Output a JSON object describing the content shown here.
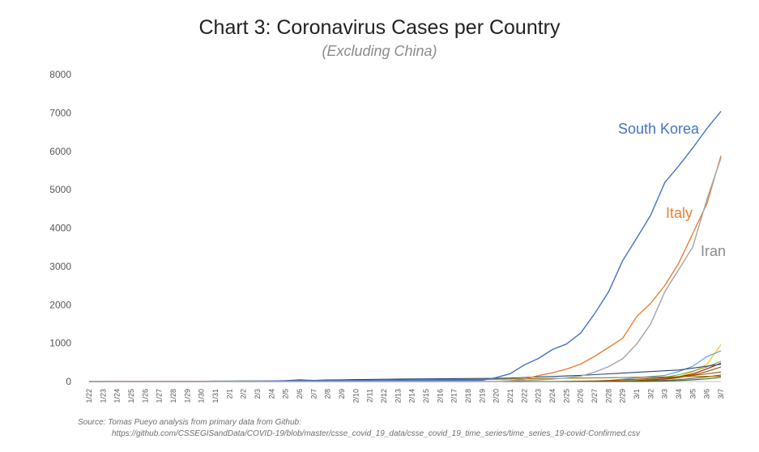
{
  "chart_data": {
    "type": "line",
    "title": "Chart 3: Coronavirus Cases per Country",
    "subtitle": "(Excluding China)",
    "ylim": [
      0,
      8000
    ],
    "yticks": [
      0,
      1000,
      2000,
      3000,
      4000,
      5000,
      6000,
      7000,
      8000
    ],
    "grid": false,
    "categories": [
      "1/22",
      "1/23",
      "1/24",
      "1/25",
      "1/26",
      "1/27",
      "1/28",
      "1/29",
      "1/30",
      "1/31",
      "2/1",
      "2/2",
      "2/3",
      "2/4",
      "2/5",
      "2/6",
      "2/7",
      "2/8",
      "2/9",
      "2/10",
      "2/11",
      "2/12",
      "2/13",
      "2/14",
      "2/15",
      "2/16",
      "2/17",
      "2/18",
      "2/19",
      "2/20",
      "2/21",
      "2/22",
      "2/23",
      "2/24",
      "2/25",
      "2/26",
      "2/27",
      "2/28",
      "2/29",
      "3/1",
      "3/2",
      "3/3",
      "3/4",
      "3/5",
      "3/6",
      "3/7"
    ],
    "series": [
      {
        "name": "South Korea",
        "color": "#4472c4",
        "values": [
          1,
          1,
          2,
          2,
          3,
          4,
          4,
          4,
          4,
          11,
          12,
          15,
          15,
          16,
          19,
          23,
          24,
          24,
          25,
          27,
          28,
          28,
          28,
          28,
          28,
          29,
          30,
          31,
          31,
          104,
          204,
          433,
          602,
          833,
          977,
          1261,
          1766,
          2337,
          3150,
          3736,
          4335,
          5186,
          5621,
          6088,
          6593,
          7041
        ]
      },
      {
        "name": "Italy",
        "color": "#ed7d31",
        "values": [
          0,
          0,
          0,
          0,
          0,
          0,
          0,
          0,
          0,
          2,
          2,
          2,
          2,
          2,
          2,
          2,
          3,
          3,
          3,
          3,
          3,
          3,
          3,
          3,
          3,
          3,
          3,
          3,
          3,
          3,
          20,
          62,
          155,
          229,
          322,
          453,
          655,
          888,
          1128,
          1694,
          2036,
          2502,
          3089,
          3858,
          4636,
          5883
        ]
      },
      {
        "name": "Iran",
        "color": "#a5a5a5",
        "values": [
          0,
          0,
          0,
          0,
          0,
          0,
          0,
          0,
          0,
          0,
          0,
          0,
          0,
          0,
          0,
          0,
          0,
          0,
          0,
          0,
          0,
          0,
          0,
          0,
          0,
          0,
          0,
          0,
          2,
          5,
          18,
          28,
          43,
          61,
          95,
          139,
          245,
          388,
          593,
          978,
          1501,
          2336,
          2922,
          3513,
          4747,
          5823
        ]
      },
      {
        "values": [
          0,
          0,
          0,
          0,
          0,
          0,
          0,
          0,
          0,
          0,
          0,
          0,
          0,
          0,
          0,
          0,
          0,
          0,
          0,
          0,
          0,
          0,
          0,
          0,
          0,
          0,
          0,
          0,
          0,
          0,
          0,
          0,
          0,
          0,
          0,
          0,
          0,
          0,
          0,
          0,
          20,
          60,
          130,
          250,
          450,
          960
        ],
        "color": "#ffc000"
      },
      {
        "values": [
          0,
          0,
          0,
          0,
          0,
          0,
          0,
          0,
          0,
          0,
          0,
          0,
          0,
          0,
          0,
          0,
          0,
          0,
          0,
          0,
          0,
          0,
          0,
          0,
          0,
          0,
          0,
          0,
          0,
          0,
          0,
          0,
          0,
          0,
          0,
          2,
          10,
          30,
          60,
          100,
          130,
          160,
          260,
          400,
          650,
          800
        ],
        "color": "#5b9bd5"
      },
      {
        "values": [
          0,
          0,
          0,
          0,
          0,
          0,
          0,
          0,
          0,
          0,
          0,
          0,
          0,
          0,
          0,
          0,
          0,
          0,
          0,
          0,
          0,
          0,
          0,
          0,
          0,
          0,
          0,
          0,
          0,
          0,
          0,
          0,
          0,
          0,
          0,
          0,
          0,
          2,
          10,
          30,
          60,
          110,
          180,
          270,
          380,
          530
        ],
        "color": "#70ad47"
      },
      {
        "values": [
          0,
          0,
          0,
          0,
          0,
          0,
          0,
          0,
          0,
          0,
          0,
          0,
          0,
          0,
          0,
          0,
          0,
          0,
          0,
          0,
          0,
          0,
          0,
          0,
          0,
          0,
          0,
          0,
          0,
          0,
          0,
          0,
          0,
          0,
          0,
          0,
          0,
          0,
          10,
          20,
          40,
          70,
          120,
          200,
          330,
          480
        ],
        "color": "#c00000"
      },
      {
        "values": [
          2,
          2,
          2,
          2,
          3,
          3,
          4,
          5,
          5,
          6,
          8,
          8,
          12,
          15,
          25,
          45,
          30,
          40,
          45,
          50,
          55,
          60,
          65,
          68,
          70,
          72,
          75,
          78,
          80,
          85,
          90,
          105,
          120,
          130,
          145,
          160,
          180,
          200,
          220,
          240,
          260,
          280,
          300,
          350,
          400,
          450
        ],
        "color": "#264478"
      },
      {
        "values": [
          0,
          0,
          0,
          0,
          0,
          0,
          0,
          0,
          0,
          0,
          0,
          0,
          0,
          0,
          0,
          0,
          0,
          0,
          0,
          0,
          0,
          0,
          0,
          0,
          0,
          0,
          0,
          0,
          0,
          0,
          0,
          0,
          0,
          0,
          0,
          0,
          0,
          5,
          10,
          20,
          35,
          60,
          100,
          170,
          260,
          380
        ],
        "color": "#7f6000"
      },
      {
        "values": [
          0,
          0,
          0,
          0,
          0,
          0,
          0,
          0,
          0,
          0,
          0,
          0,
          0,
          0,
          0,
          0,
          0,
          0,
          0,
          0,
          0,
          0,
          0,
          0,
          0,
          0,
          0,
          0,
          0,
          0,
          0,
          0,
          0,
          0,
          5,
          10,
          15,
          25,
          40,
          60,
          80,
          100,
          130,
          160,
          200,
          250
        ],
        "color": "#9e480e"
      },
      {
        "values": [
          0,
          0,
          0,
          0,
          0,
          0,
          0,
          0,
          0,
          0,
          0,
          0,
          0,
          0,
          0,
          0,
          0,
          0,
          0,
          0,
          0,
          0,
          0,
          0,
          0,
          0,
          0,
          0,
          0,
          0,
          0,
          0,
          0,
          0,
          0,
          0,
          0,
          0,
          0,
          5,
          15,
          30,
          50,
          80,
          120,
          170
        ],
        "color": "#636363"
      },
      {
        "values": [
          0,
          0,
          0,
          0,
          0,
          1,
          1,
          1,
          1,
          2,
          2,
          2,
          5,
          5,
          8,
          10,
          12,
          15,
          20,
          25,
          30,
          35,
          40,
          45,
          47,
          50,
          53,
          55,
          58,
          60,
          65,
          70,
          75,
          80,
          85,
          90,
          95,
          100,
          105,
          110,
          115,
          120,
          125,
          130,
          135,
          140
        ],
        "color": "#997300"
      },
      {
        "values": [
          0,
          0,
          0,
          0,
          0,
          0,
          0,
          0,
          0,
          0,
          0,
          0,
          0,
          0,
          0,
          0,
          0,
          0,
          0,
          0,
          0,
          0,
          0,
          0,
          0,
          0,
          0,
          0,
          0,
          0,
          0,
          0,
          0,
          0,
          0,
          0,
          0,
          0,
          0,
          0,
          5,
          12,
          25,
          45,
          70,
          110
        ],
        "color": "#43682b"
      }
    ]
  },
  "source": {
    "line1": "Source: Tomas Pueyo analysis from primary data from Github:",
    "line2": "https://github.com/CSSEGISandData/COVID-19/blob/master/csse_covid_19_data/csse_covid_19_time_series/time_series_19-covid-Confirmed.csv"
  }
}
